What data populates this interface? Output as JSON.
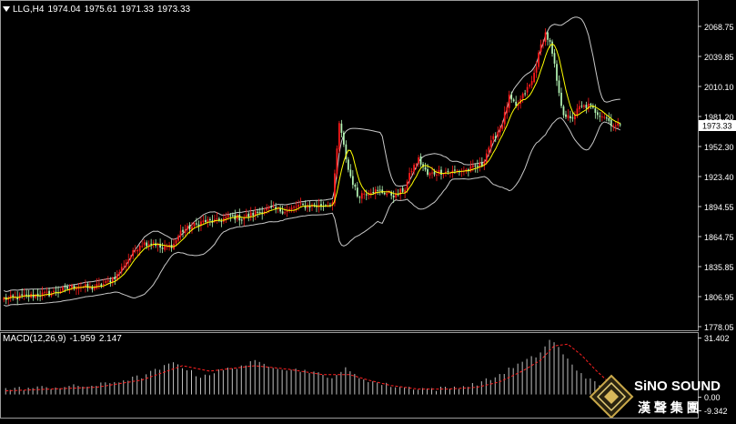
{
  "symbol": "LLG",
  "timeframe": "H4",
  "header": {
    "symbol_tf": "LLG,H4",
    "open": "1974.04",
    "high": "1975.61",
    "low": "1971.33",
    "close": "1973.33"
  },
  "price_scale": {
    "ticks": [
      "2068.75",
      "2039.85",
      "2010.10",
      "1981.20",
      "1952.30",
      "1923.40",
      "1894.55",
      "1864.75",
      "1835.85",
      "1806.95",
      "1778.05"
    ],
    "current_price": "1973.33"
  },
  "macd": {
    "label": "MACD(12,26,9)",
    "main": "-1.959",
    "signal": "2.147",
    "ticks": [
      "31.402",
      "0.00",
      "-9.342"
    ]
  },
  "logo": {
    "brand": "SiNO SOUND",
    "chinese": "漢 聲 集 團"
  },
  "colors": {
    "background": "#000000",
    "bull": "#ff1a1a",
    "bear": "#b4f5b4",
    "ma": "#ffff00",
    "bands": "#c8c8c8",
    "macd_signal": "#ff2020",
    "macd_hist": "#c0c0c0"
  },
  "chart_data": {
    "type": "candlestick",
    "indicators": [
      "Bollinger Bands",
      "Moving Average",
      "MACD(12,26,9)"
    ],
    "ylim": [
      1778.05,
      2068.75
    ],
    "macd_ylim": [
      -9.342,
      31.402
    ],
    "price_path": [
      [
        0,
        1805
      ],
      [
        12,
        1808
      ],
      [
        20,
        1810
      ],
      [
        28,
        1815
      ],
      [
        33,
        1818
      ],
      [
        38,
        1815
      ],
      [
        45,
        1820
      ],
      [
        50,
        1828
      ],
      [
        53,
        1838
      ],
      [
        60,
        1858
      ],
      [
        66,
        1860
      ],
      [
        70,
        1853
      ],
      [
        75,
        1858
      ],
      [
        78,
        1870
      ],
      [
        83,
        1875
      ],
      [
        88,
        1880
      ],
      [
        94,
        1880
      ],
      [
        100,
        1885
      ],
      [
        105,
        1883
      ],
      [
        111,
        1888
      ],
      [
        117,
        1892
      ],
      [
        125,
        1890
      ],
      [
        130,
        1895
      ],
      [
        140,
        1895
      ],
      [
        145,
        1898
      ],
      [
        148,
        1975
      ],
      [
        152,
        1930
      ],
      [
        156,
        1905
      ],
      [
        162,
        1910
      ],
      [
        168,
        1908
      ],
      [
        173,
        1905
      ],
      [
        177,
        1912
      ],
      [
        180,
        1930
      ],
      [
        183,
        1940
      ],
      [
        187,
        1925
      ],
      [
        192,
        1928
      ],
      [
        198,
        1928
      ],
      [
        205,
        1930
      ],
      [
        211,
        1935
      ],
      [
        214,
        1952
      ],
      [
        220,
        1975
      ],
      [
        223,
        2000
      ],
      [
        226,
        1990
      ],
      [
        230,
        2005
      ],
      [
        233,
        2015
      ],
      [
        235,
        2032
      ],
      [
        237,
        2050
      ],
      [
        239,
        2062
      ],
      [
        241,
        2052
      ],
      [
        243,
        2030
      ],
      [
        245,
        2002
      ],
      [
        247,
        1985
      ],
      [
        250,
        1978
      ],
      [
        254,
        1990
      ],
      [
        258,
        1992
      ],
      [
        262,
        1985
      ],
      [
        265,
        1982
      ],
      [
        268,
        1975
      ],
      [
        270,
        1972
      ],
      [
        272,
        1973.33
      ]
    ],
    "macd_hist_path": [
      [
        0,
        3
      ],
      [
        40,
        5
      ],
      [
        60,
        10
      ],
      [
        75,
        18
      ],
      [
        85,
        10
      ],
      [
        110,
        18
      ],
      [
        125,
        14
      ],
      [
        135,
        13
      ],
      [
        142,
        9
      ],
      [
        150,
        14
      ],
      [
        155,
        10
      ],
      [
        165,
        6
      ],
      [
        175,
        4
      ],
      [
        190,
        3
      ],
      [
        205,
        5
      ],
      [
        215,
        9
      ],
      [
        225,
        16
      ],
      [
        235,
        22
      ],
      [
        241,
        31.4
      ],
      [
        246,
        22
      ],
      [
        252,
        14
      ],
      [
        258,
        8
      ],
      [
        264,
        3
      ],
      [
        268,
        -1
      ],
      [
        272,
        -1.959
      ]
    ],
    "macd_signal_path": [
      [
        0,
        2
      ],
      [
        40,
        4
      ],
      [
        60,
        8
      ],
      [
        78,
        16
      ],
      [
        90,
        13
      ],
      [
        110,
        16
      ],
      [
        125,
        14
      ],
      [
        140,
        11
      ],
      [
        152,
        11
      ],
      [
        160,
        8
      ],
      [
        170,
        5
      ],
      [
        182,
        3
      ],
      [
        195,
        3
      ],
      [
        208,
        4
      ],
      [
        218,
        7
      ],
      [
        228,
        13
      ],
      [
        236,
        19
      ],
      [
        242,
        27
      ],
      [
        248,
        28
      ],
      [
        254,
        22
      ],
      [
        260,
        14
      ],
      [
        266,
        7
      ],
      [
        272,
        2.147
      ]
    ]
  }
}
